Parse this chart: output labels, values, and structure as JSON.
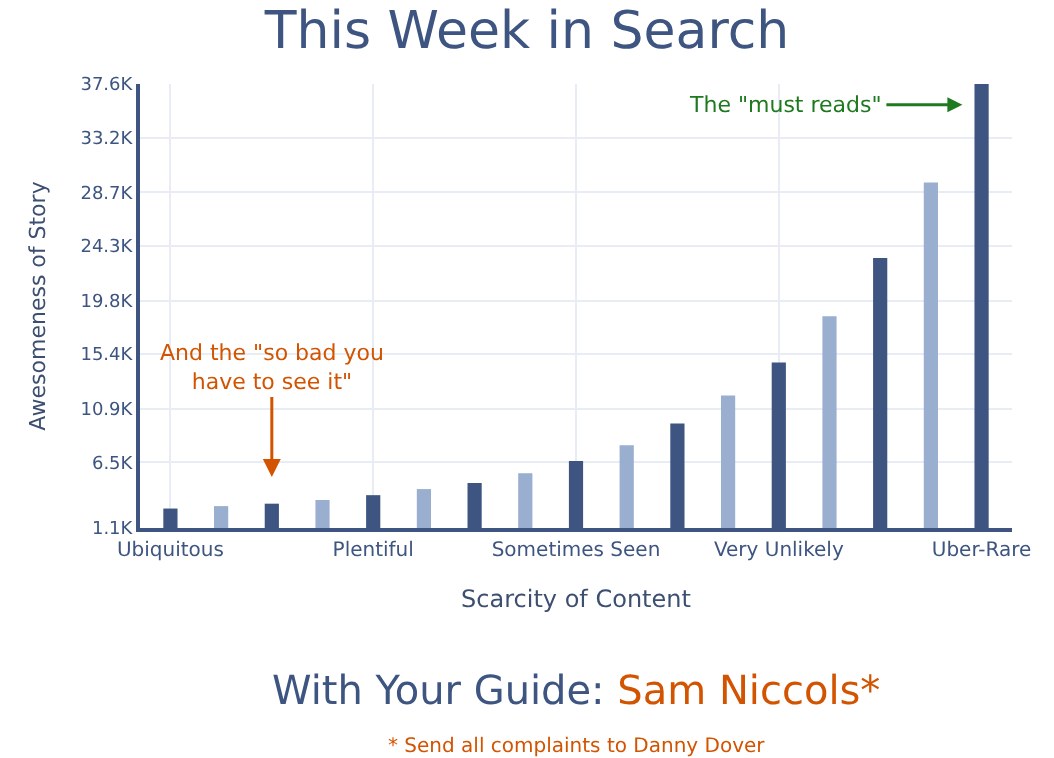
{
  "chart_data": {
    "type": "bar",
    "title": "This Week in Search",
    "subtitle": "With Your Guide: Sam Niccols*",
    "xlabel": "Scarcity of Content",
    "ylabel": "Awesomeness of Story",
    "categories": [
      "Ubiquitous",
      null,
      null,
      null,
      "Plentiful",
      null,
      null,
      null,
      "Sometimes Seen",
      null,
      null,
      null,
      "Very Unlikely",
      null,
      null,
      null,
      "Uber-Rare"
    ],
    "values": [
      2.7,
      2.9,
      3.1,
      3.4,
      3.8,
      4.3,
      4.8,
      5.6,
      6.6,
      7.9,
      9.7,
      12.0,
      14.7,
      18.5,
      23.3,
      29.5,
      37.6
    ],
    "colors": [
      "#3d5580",
      "#9aaed0",
      "#3d5580",
      "#9aaed0",
      "#3d5580",
      "#9aaed0",
      "#3d5580",
      "#9aaed0",
      "#3d5580",
      "#9aaed0",
      "#3d5580",
      "#9aaed0",
      "#3d5580",
      "#9aaed0",
      "#3d5580",
      "#9aaed0",
      "#3d5580"
    ],
    "ylim": [
      1.1,
      37.6
    ],
    "yticks": [
      {
        "value": 1.1,
        "label": "1.1K"
      },
      {
        "value": 6.5,
        "label": "6.5K"
      },
      {
        "value": 10.9,
        "label": "10.9K"
      },
      {
        "value": 15.4,
        "label": "15.4K"
      },
      {
        "value": 19.8,
        "label": "19.8K"
      },
      {
        "value": 24.3,
        "label": "24.3K"
      },
      {
        "value": 28.7,
        "label": "28.7K"
      },
      {
        "value": 33.2,
        "label": "33.2K"
      },
      {
        "value": 37.6,
        "label": "37.6K"
      }
    ],
    "grid": true,
    "annotations": [
      "And the \"so bad you have to see it\"",
      "The \"must reads\"",
      "* Send all complaints to Danny Dover"
    ]
  }
}
